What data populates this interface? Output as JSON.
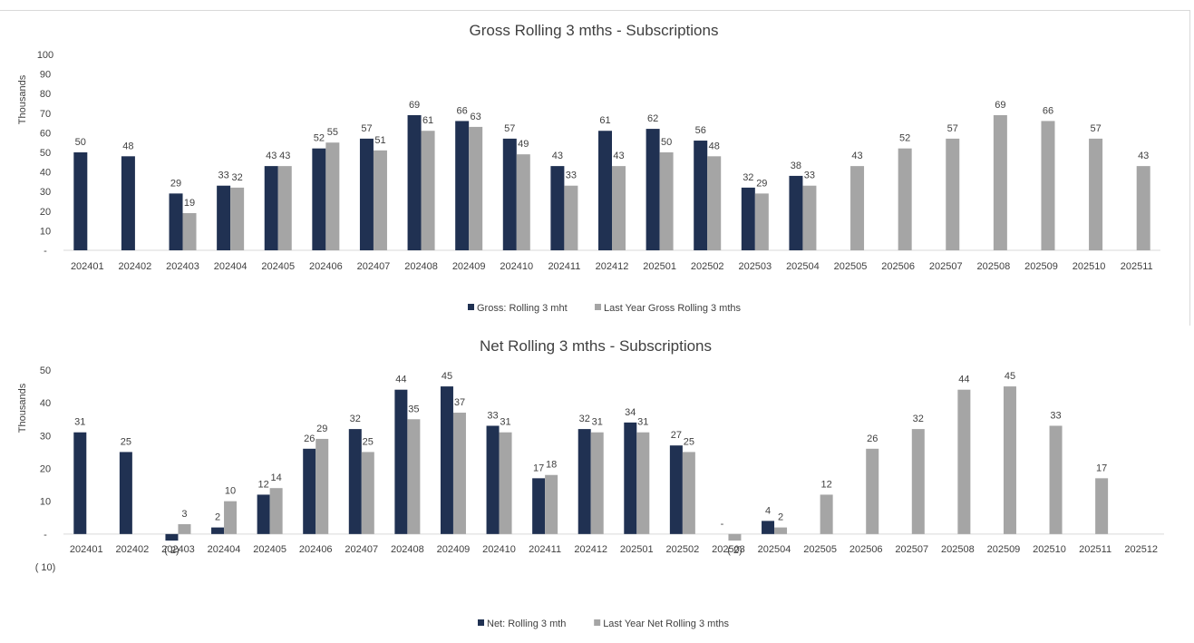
{
  "colors": {
    "current": "#203152",
    "last_year": "#a5a5a5",
    "axis": "#d9d9d9"
  },
  "chart_data": [
    {
      "type": "bar",
      "title": "Gross Rolling 3 mths - Subscriptions",
      "ylabel": "Thousands",
      "ylim": [
        0,
        100
      ],
      "yticks": [
        "-",
        "10",
        "20",
        "30",
        "40",
        "50",
        "60",
        "70",
        "80",
        "90",
        "100"
      ],
      "grid": false,
      "legend_position": "bottom",
      "categories": [
        "202401",
        "202402",
        "202403",
        "202404",
        "202405",
        "202406",
        "202407",
        "202408",
        "202409",
        "202410",
        "202411",
        "202412",
        "202501",
        "202502",
        "202503",
        "202504",
        "202505",
        "202506",
        "202507",
        "202508",
        "202509",
        "202510",
        "202511"
      ],
      "series": [
        {
          "name": "Gross: Rolling 3 mht",
          "values": [
            50,
            48,
            29,
            33,
            43,
            52,
            57,
            69,
            66,
            57,
            43,
            61,
            62,
            56,
            32,
            38,
            null,
            null,
            null,
            null,
            null,
            null,
            null
          ],
          "labels": [
            "50",
            "48",
            "29",
            "33",
            "43",
            "52",
            "57",
            "69",
            "66",
            "57",
            "43",
            "61",
            "62",
            "56",
            "32",
            "38",
            "",
            "",
            "",
            "",
            "",
            "",
            ""
          ]
        },
        {
          "name": "Last Year Gross Rolling 3 mths",
          "values": [
            null,
            null,
            19,
            32,
            43,
            55,
            51,
            61,
            63,
            49,
            33,
            43,
            50,
            48,
            29,
            33,
            43,
            52,
            57,
            69,
            66,
            57,
            43
          ],
          "labels": [
            "",
            "",
            "19",
            "32",
            "43",
            "55",
            "51",
            "61",
            "63",
            "49",
            "33",
            "43",
            "50",
            "48",
            "29",
            "33",
            "43",
            "52",
            "57",
            "69",
            "66",
            "57",
            "43"
          ]
        }
      ]
    },
    {
      "type": "bar",
      "title": "Net Rolling 3 mths - Subscriptions",
      "ylabel": "Thousands",
      "ylim": [
        -10,
        50
      ],
      "yticks": [
        "( 10)",
        "-",
        "10",
        "20",
        "30",
        "40",
        "50"
      ],
      "grid": false,
      "legend_position": "bottom",
      "categories": [
        "202401",
        "202402",
        "202403",
        "202404",
        "202405",
        "202406",
        "202407",
        "202408",
        "202409",
        "202410",
        "202411",
        "202412",
        "202501",
        "202502",
        "202503",
        "202504",
        "202505",
        "202506",
        "202507",
        "202508",
        "202509",
        "202510",
        "202511",
        "202512"
      ],
      "series": [
        {
          "name": "Net: Rolling 3 mth",
          "values": [
            31,
            25,
            -2,
            2,
            12,
            26,
            32,
            44,
            45,
            33,
            17,
            32,
            34,
            27,
            0,
            4,
            null,
            null,
            null,
            null,
            null,
            null,
            null,
            null
          ],
          "labels": [
            "31",
            "25",
            "( 2)",
            "2",
            "12",
            "26",
            "32",
            "44",
            "45",
            "33",
            "17",
            "32",
            "34",
            "27",
            "-",
            "4",
            "",
            "",
            "",
            "",
            "",
            "",
            "",
            ""
          ]
        },
        {
          "name": "Last Year Net Rolling 3 mths",
          "values": [
            null,
            null,
            3,
            10,
            14,
            29,
            25,
            35,
            37,
            31,
            18,
            31,
            31,
            25,
            -2,
            2,
            12,
            26,
            32,
            44,
            45,
            33,
            17,
            null
          ],
          "labels": [
            "",
            "",
            "3",
            "10",
            "14",
            "29",
            "25",
            "35",
            "37",
            "31",
            "18",
            "31",
            "31",
            "25",
            "( 2)",
            "2",
            "12",
            "26",
            "32",
            "44",
            "45",
            "33",
            "17",
            ""
          ]
        }
      ]
    }
  ]
}
